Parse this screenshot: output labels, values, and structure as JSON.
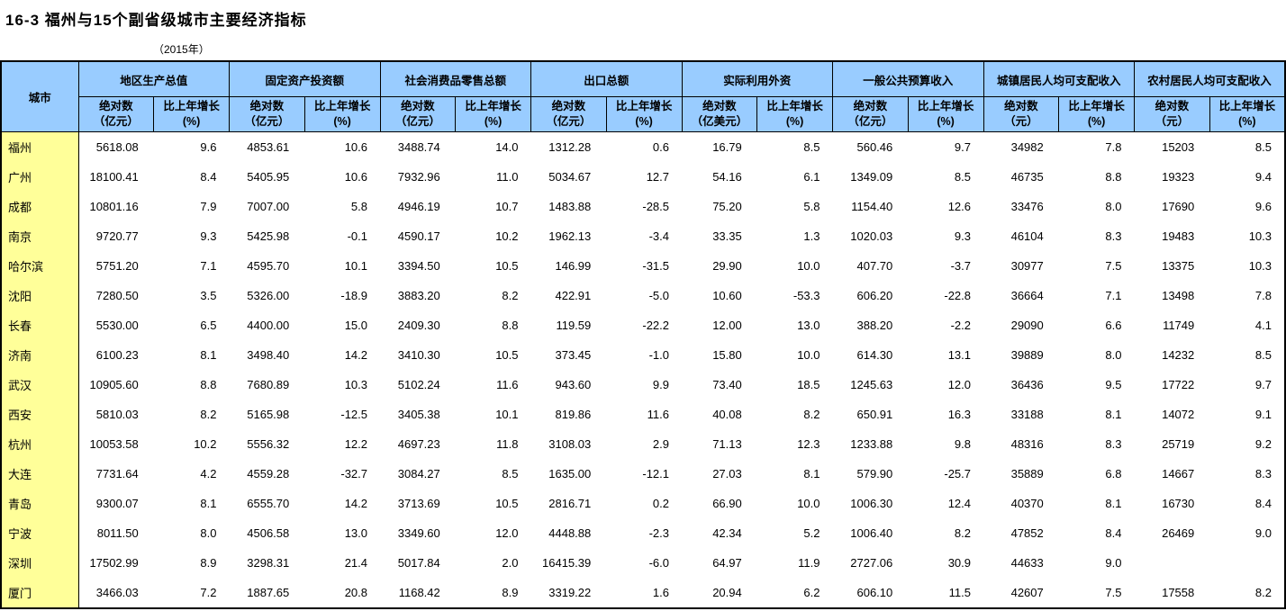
{
  "page": {
    "title": "16-3 福州与15个副省级城市主要经济指标",
    "subtitle": "（2015年）"
  },
  "colors": {
    "header_bg": "#99CCFF",
    "city_col_bg": "#FFFF99",
    "border": "#000000"
  },
  "table": {
    "city_header": "城市",
    "groups": [
      {
        "name": "地区生产总值",
        "cols": [
          {
            "l1": "绝对数",
            "l2": "（亿元）"
          },
          {
            "l1": "比上年增长",
            "l2": "(%)"
          }
        ]
      },
      {
        "name": "固定资产投资额",
        "cols": [
          {
            "l1": "绝对数",
            "l2": "（亿元）"
          },
          {
            "l1": "比上年增长",
            "l2": "(%)"
          }
        ]
      },
      {
        "name": "社会消费品零售总额",
        "cols": [
          {
            "l1": "绝对数",
            "l2": "（亿元）"
          },
          {
            "l1": "比上年增长",
            "l2": "(%)"
          }
        ]
      },
      {
        "name": "出口总额",
        "cols": [
          {
            "l1": "绝对数",
            "l2": "（亿元）"
          },
          {
            "l1": "比上年增长",
            "l2": "(%)"
          }
        ]
      },
      {
        "name": "实际利用外资",
        "cols": [
          {
            "l1": "绝对数",
            "l2": "（亿美元）"
          },
          {
            "l1": "比上年增长",
            "l2": "(%)"
          }
        ]
      },
      {
        "name": "一般公共预算收入",
        "cols": [
          {
            "l1": "绝对数",
            "l2": "（亿元）"
          },
          {
            "l1": "比上年增长",
            "l2": "(%)"
          }
        ]
      },
      {
        "name": "城镇居民人均可支配收入",
        "cols": [
          {
            "l1": "绝对数",
            "l2": "（元）"
          },
          {
            "l1": "比上年增长",
            "l2": "(%)"
          }
        ]
      },
      {
        "name": "农村居民人均可支配收入",
        "cols": [
          {
            "l1": "绝对数",
            "l2": "（元）"
          },
          {
            "l1": "比上年增长",
            "l2": "(%)"
          }
        ]
      }
    ],
    "rows": [
      {
        "city": "福州",
        "values": [
          "5618.08",
          "9.6",
          "4853.61",
          "10.6",
          "3488.74",
          "14.0",
          "1312.28",
          "0.6",
          "16.79",
          "8.5",
          "560.46",
          "9.7",
          "34982",
          "7.8",
          "15203",
          "8.5"
        ]
      },
      {
        "city": "广州",
        "values": [
          "18100.41",
          "8.4",
          "5405.95",
          "10.6",
          "7932.96",
          "11.0",
          "5034.67",
          "12.7",
          "54.16",
          "6.1",
          "1349.09",
          "8.5",
          "46735",
          "8.8",
          "19323",
          "9.4"
        ]
      },
      {
        "city": "成都",
        "values": [
          "10801.16",
          "7.9",
          "7007.00",
          "5.8",
          "4946.19",
          "10.7",
          "1483.88",
          "-28.5",
          "75.20",
          "5.8",
          "1154.40",
          "12.6",
          "33476",
          "8.0",
          "17690",
          "9.6"
        ]
      },
      {
        "city": "南京",
        "values": [
          "9720.77",
          "9.3",
          "5425.98",
          "-0.1",
          "4590.17",
          "10.2",
          "1962.13",
          "-3.4",
          "33.35",
          "1.3",
          "1020.03",
          "9.3",
          "46104",
          "8.3",
          "19483",
          "10.3"
        ]
      },
      {
        "city": "哈尔滨",
        "values": [
          "5751.20",
          "7.1",
          "4595.70",
          "10.1",
          "3394.50",
          "10.5",
          "146.99",
          "-31.5",
          "29.90",
          "10.0",
          "407.70",
          "-3.7",
          "30977",
          "7.5",
          "13375",
          "10.3"
        ]
      },
      {
        "city": "沈阳",
        "values": [
          "7280.50",
          "3.5",
          "5326.00",
          "-18.9",
          "3883.20",
          "8.2",
          "422.91",
          "-5.0",
          "10.60",
          "-53.3",
          "606.20",
          "-22.8",
          "36664",
          "7.1",
          "13498",
          "7.8"
        ]
      },
      {
        "city": "长春",
        "values": [
          "5530.00",
          "6.5",
          "4400.00",
          "15.0",
          "2409.30",
          "8.8",
          "119.59",
          "-22.2",
          "12.00",
          "13.0",
          "388.20",
          "-2.2",
          "29090",
          "6.6",
          "11749",
          "4.1"
        ]
      },
      {
        "city": "济南",
        "values": [
          "6100.23",
          "8.1",
          "3498.40",
          "14.2",
          "3410.30",
          "10.5",
          "373.45",
          "-1.0",
          "15.80",
          "10.0",
          "614.30",
          "13.1",
          "39889",
          "8.0",
          "14232",
          "8.5"
        ]
      },
      {
        "city": "武汉",
        "values": [
          "10905.60",
          "8.8",
          "7680.89",
          "10.3",
          "5102.24",
          "11.6",
          "943.60",
          "9.9",
          "73.40",
          "18.5",
          "1245.63",
          "12.0",
          "36436",
          "9.5",
          "17722",
          "9.7"
        ]
      },
      {
        "city": "西安",
        "values": [
          "5810.03",
          "8.2",
          "5165.98",
          "-12.5",
          "3405.38",
          "10.1",
          "819.86",
          "11.6",
          "40.08",
          "8.2",
          "650.91",
          "16.3",
          "33188",
          "8.1",
          "14072",
          "9.1"
        ]
      },
      {
        "city": "杭州",
        "values": [
          "10053.58",
          "10.2",
          "5556.32",
          "12.2",
          "4697.23",
          "11.8",
          "3108.03",
          "2.9",
          "71.13",
          "12.3",
          "1233.88",
          "9.8",
          "48316",
          "8.3",
          "25719",
          "9.2"
        ]
      },
      {
        "city": "大连",
        "values": [
          "7731.64",
          "4.2",
          "4559.28",
          "-32.7",
          "3084.27",
          "8.5",
          "1635.00",
          "-12.1",
          "27.03",
          "8.1",
          "579.90",
          "-25.7",
          "35889",
          "6.8",
          "14667",
          "8.3"
        ]
      },
      {
        "city": "青岛",
        "values": [
          "9300.07",
          "8.1",
          "6555.70",
          "14.2",
          "3713.69",
          "10.5",
          "2816.71",
          "0.2",
          "66.90",
          "10.0",
          "1006.30",
          "12.4",
          "40370",
          "8.1",
          "16730",
          "8.4"
        ]
      },
      {
        "city": "宁波",
        "values": [
          "8011.50",
          "8.0",
          "4506.58",
          "13.0",
          "3349.60",
          "12.0",
          "4448.88",
          "-2.3",
          "42.34",
          "5.2",
          "1006.40",
          "8.2",
          "47852",
          "8.4",
          "26469",
          "9.0"
        ]
      },
      {
        "city": "深圳",
        "values": [
          "17502.99",
          "8.9",
          "3298.31",
          "21.4",
          "5017.84",
          "2.0",
          "16415.39",
          "-6.0",
          "64.97",
          "11.9",
          "2727.06",
          "30.9",
          "44633",
          "9.0",
          "",
          ""
        ]
      },
      {
        "city": "厦门",
        "values": [
          "3466.03",
          "7.2",
          "1887.65",
          "20.8",
          "1168.42",
          "8.9",
          "3319.22",
          "1.6",
          "20.94",
          "6.2",
          "606.10",
          "11.5",
          "42607",
          "7.5",
          "17558",
          "8.2"
        ]
      }
    ]
  }
}
